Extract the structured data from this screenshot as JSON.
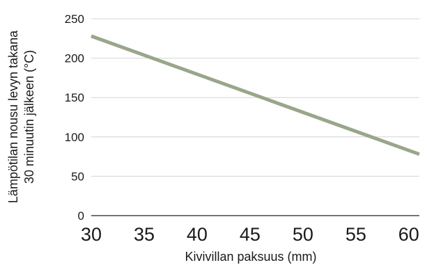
{
  "chart_data": {
    "type": "line",
    "xlabel": "Kivivillan paksuus (mm)",
    "ylabel_lines": [
      "Lämpötilan nousu levyn takana",
      "30 minuutin jälkeen (°C)"
    ],
    "xlim": [
      30,
      61
    ],
    "ylim": [
      0,
      250
    ],
    "x_ticks": [
      30,
      35,
      40,
      45,
      50,
      55,
      60
    ],
    "y_ticks": [
      0,
      50,
      100,
      150,
      200,
      250
    ],
    "grid": "horizontal",
    "series": [
      {
        "x": [
          30,
          61
        ],
        "y": [
          228,
          78
        ],
        "color": "#98a68a"
      }
    ]
  }
}
